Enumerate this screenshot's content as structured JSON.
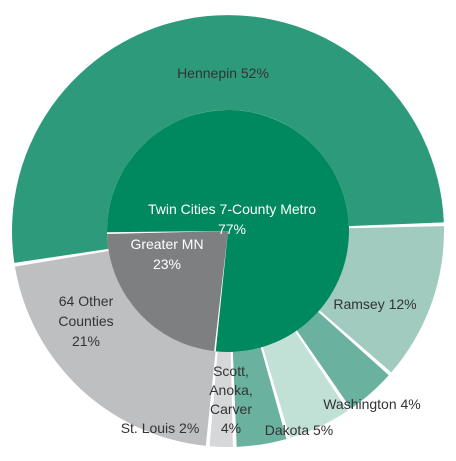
{
  "colors": {
    "metro_inner": "#00885e",
    "greater_inner": "#7e7f81",
    "hennepin": "#2e9a7c",
    "ramsey": "#a2cbbf",
    "washington": "#6ab19f",
    "dakota": "#c2e1d6",
    "scott_anoka_carver": "#6ab19f",
    "st_louis": "#d6d7d9",
    "other_counties": "#bebfc1",
    "label_dark": "#333333",
    "label_light": "#ffffff",
    "separator": "#ffffff"
  },
  "chart_data": {
    "type": "pie",
    "title": "",
    "rings": [
      {
        "ring": "inner",
        "slices": [
          {
            "name": "Twin Cities 7-County Metro",
            "value": 77,
            "label_lines": [
              "Twin Cities 7-County Metro",
              "77%"
            ],
            "color_key": "metro_inner",
            "text_color_key": "label_light"
          },
          {
            "name": "Greater MN",
            "value": 23,
            "label_lines": [
              "Greater MN",
              "23%"
            ],
            "color_key": "greater_inner",
            "text_color_key": "label_light"
          }
        ]
      },
      {
        "ring": "outer",
        "slices": [
          {
            "name": "Hennepin",
            "value": 52,
            "label_lines": [
              "Hennepin 52%"
            ],
            "color_key": "hennepin",
            "text_color_key": "label_dark"
          },
          {
            "name": "Ramsey",
            "value": 12,
            "label_lines": [
              "Ramsey 12%"
            ],
            "color_key": "ramsey",
            "text_color_key": "label_dark"
          },
          {
            "name": "Washington",
            "value": 4,
            "label_lines": [
              "Washington 4%"
            ],
            "color_key": "washington",
            "text_color_key": "label_dark"
          },
          {
            "name": "Dakota",
            "value": 5,
            "label_lines": [
              "Dakota 5%"
            ],
            "color_key": "dakota",
            "text_color_key": "label_dark"
          },
          {
            "name": "Scott, Anoka, Carver",
            "value": 4,
            "label_lines": [
              "Scott,",
              "Anoka,",
              "Carver",
              "4%"
            ],
            "color_key": "scott_anoka_carver",
            "text_color_key": "label_dark"
          },
          {
            "name": "St. Louis",
            "value": 2,
            "label_lines": [
              "St. Louis 2%"
            ],
            "color_key": "st_louis",
            "text_color_key": "label_dark"
          },
          {
            "name": "64 Other Counties",
            "value": 21,
            "label_lines": [
              "64 Other",
              "Counties",
              "21%"
            ],
            "color_key": "other_counties",
            "text_color_key": "label_dark"
          }
        ]
      }
    ]
  }
}
